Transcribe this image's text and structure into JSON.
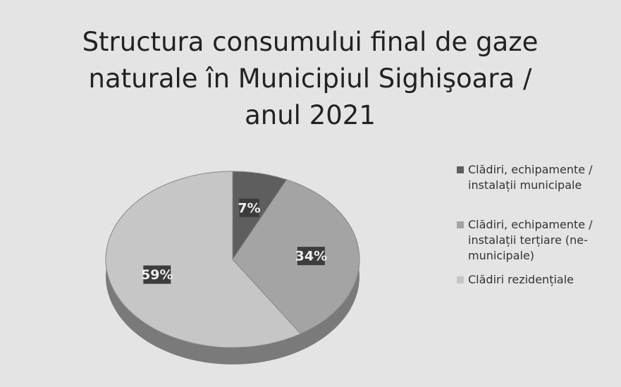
{
  "chart_data": {
    "type": "pie",
    "title": "Structura consumului final de gaze naturale în Municipiul Sighişoara / anul 2021",
    "categories": [
      "Clădiri, echipamente / instalații municipale",
      "Clădiri, echipamente / instalații terțiare (ne-municipale)",
      "Clădiri rezidențiale"
    ],
    "values": [
      7,
      34,
      59
    ],
    "value_labels": [
      "7%",
      "34%",
      "59%"
    ],
    "colors": [
      "#5e5e5e",
      "#a4a4a4",
      "#c6c6c6"
    ],
    "legend": "right"
  }
}
